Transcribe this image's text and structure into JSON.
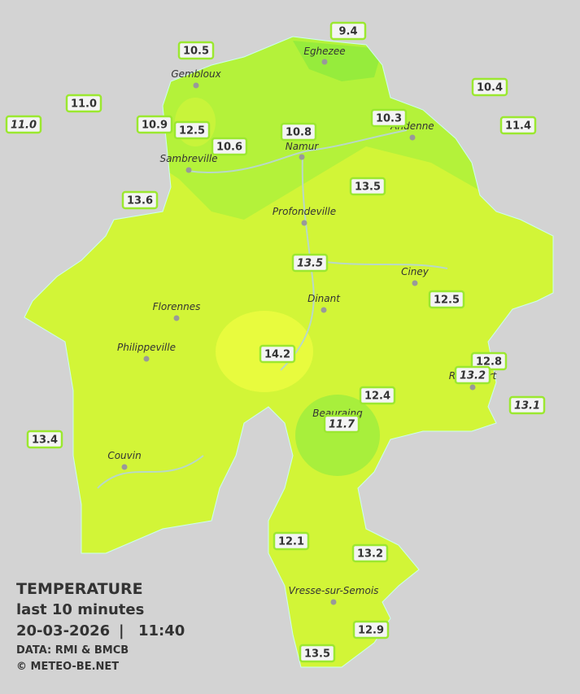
{
  "legend": {
    "title": "TEMPERATURE",
    "period": "last 10 minutes",
    "date": "20-03-2026",
    "separator": "|",
    "time": "11:40",
    "source": "DATA: RMI & BMCB",
    "copyright": "© METEO-BE.NET"
  },
  "cities": [
    "Eghezee",
    "Gembloux",
    "Andenne",
    "Namur",
    "Sambreville",
    "Profondeville",
    "Ciney",
    "Dinant",
    "Florennes",
    "Philippeville",
    "Rochefort",
    "Beauraing",
    "Couvin",
    "Vresse-sur-Semois"
  ],
  "stations": [
    {
      "label": "9.4"
    },
    {
      "label": "10.5"
    },
    {
      "label": "10.4"
    },
    {
      "label": "11.0"
    },
    {
      "label": "11.0",
      "italic": true
    },
    {
      "label": "10.9"
    },
    {
      "label": "12.5"
    },
    {
      "label": "10.3"
    },
    {
      "label": "11.4"
    },
    {
      "label": "10.8"
    },
    {
      "label": "10.6"
    },
    {
      "label": "13.5"
    },
    {
      "label": "13.6"
    },
    {
      "label": "13.5",
      "italic": true
    },
    {
      "label": "12.5"
    },
    {
      "label": "14.2"
    },
    {
      "label": "12.8"
    },
    {
      "label": "13.2",
      "italic": true
    },
    {
      "label": "12.4"
    },
    {
      "label": "13.1",
      "italic": true
    },
    {
      "label": "11.7",
      "italic": true
    },
    {
      "label": "13.4"
    },
    {
      "label": "12.1"
    },
    {
      "label": "13.2"
    },
    {
      "label": "12.9"
    },
    {
      "label": "13.5"
    }
  ]
}
